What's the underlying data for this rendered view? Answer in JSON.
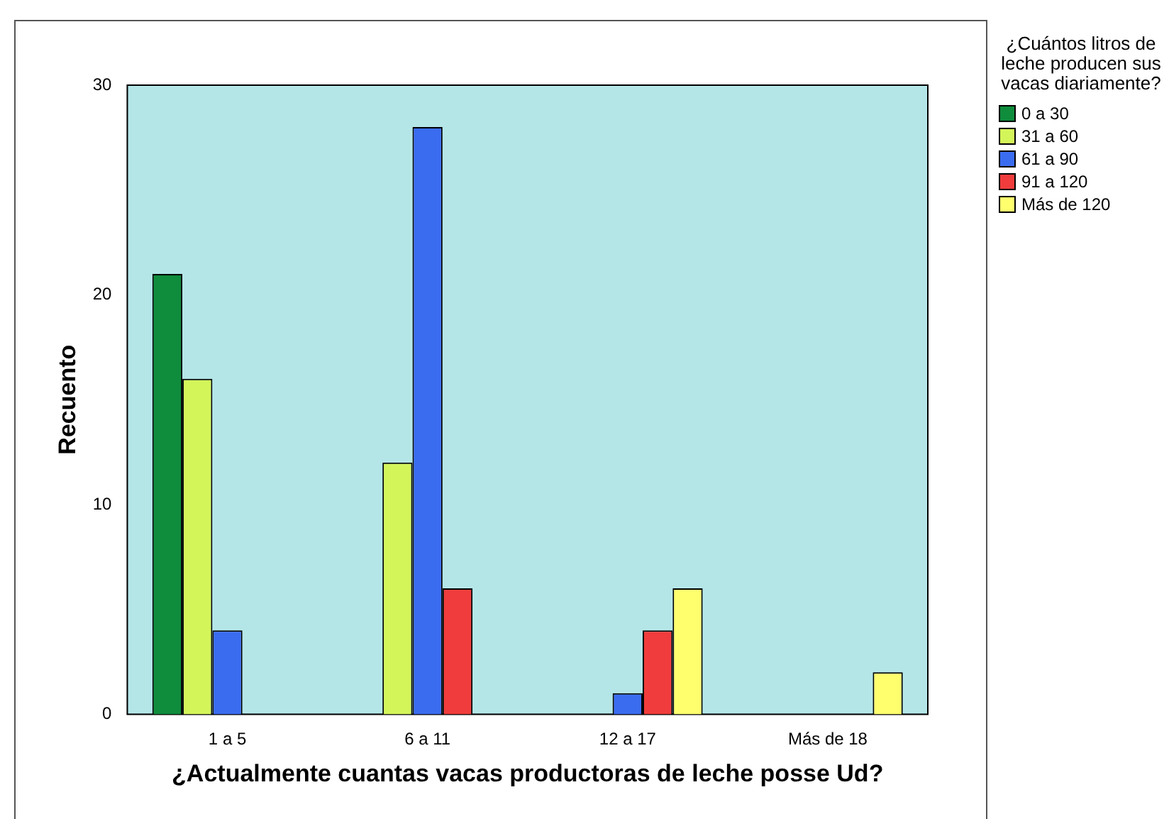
{
  "chart_data": {
    "type": "bar",
    "xlabel": "¿Actualmente cuantas vacas productoras de leche posse Ud?",
    "ylabel": "Recuento",
    "legend_title": "¿Cuántos litros de leche producen sus vacas diariamente?",
    "legend": "right",
    "categories": [
      "1 a 5",
      "6 a 11",
      "12 a 17",
      "Más de 18"
    ],
    "ylim": [
      0,
      30
    ],
    "yticks": [
      0,
      10,
      20,
      30
    ],
    "series": [
      {
        "name": "0 a 30",
        "color": "#0f8c3c",
        "values": [
          21,
          0,
          0,
          0
        ]
      },
      {
        "name": "31 a 60",
        "color": "#d4f55a",
        "values": [
          16,
          12,
          0,
          0
        ]
      },
      {
        "name": "61 a 90",
        "color": "#3a6cf0",
        "values": [
          4,
          28,
          1,
          0
        ]
      },
      {
        "name": "91 a 120",
        "color": "#f03c3c",
        "values": [
          0,
          6,
          4,
          0
        ]
      },
      {
        "name": "Más de 120",
        "color": "#ffff6e",
        "values": [
          0,
          0,
          6,
          2
        ]
      }
    ]
  }
}
